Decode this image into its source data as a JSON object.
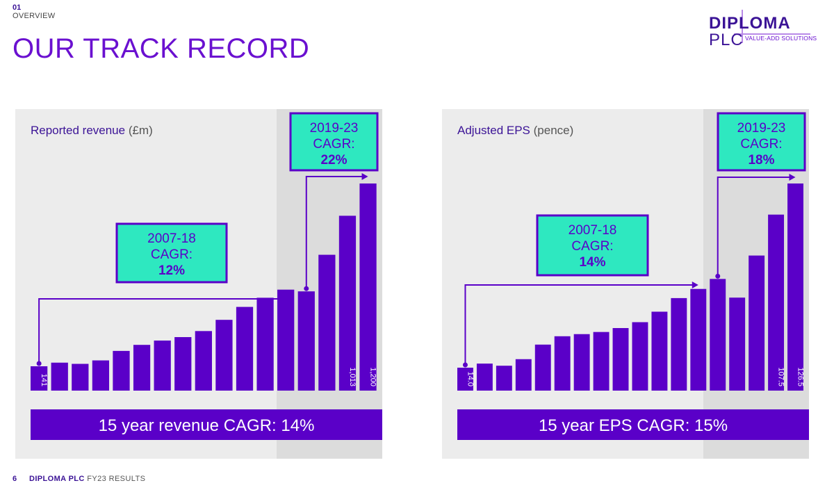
{
  "header": {
    "section_number": "01",
    "section_name": "OVERVIEW",
    "title": "OUR TRACK RECORD"
  },
  "logo": {
    "brand": "DIPLOMA",
    "suffix": "PLC",
    "tagline": "VALUE-ADD SOLUTIONS"
  },
  "footer": {
    "page_number": "6",
    "company": "DIPLOMA PLC",
    "report": "FY23 RESULTS"
  },
  "colors": {
    "bar": "#5a00c8",
    "panel_bg": "#ececec",
    "highlight_bg": "#dcdcdc",
    "callout_fill": "#2ee8c0",
    "callout_border": "#5a00c8",
    "accent": "#6a10d0"
  },
  "chart_data": [
    {
      "type": "bar",
      "title": "Reported revenue",
      "title_unit": "(£m)",
      "values": [
        141,
        162,
        155,
        175,
        230,
        265,
        290,
        310,
        345,
        410,
        485,
        538,
        585,
        575,
        787,
        1013,
        1200
      ],
      "value_labels": [
        "141",
        "",
        "",
        "",
        "",
        "",
        "",
        "",
        "",
        "",
        "",
        "",
        "",
        "",
        "",
        "1,013",
        "1,200"
      ],
      "ylim": [
        0,
        1200
      ],
      "callouts": [
        {
          "period": "2007-18",
          "label": "CAGR:",
          "value": "12%"
        },
        {
          "period": "2019-23",
          "label": "CAGR:",
          "value": "22%"
        }
      ],
      "summary": "15 year revenue CAGR: 14%"
    },
    {
      "type": "bar",
      "title": "Adjusted EPS",
      "title_unit": "(pence)",
      "values": [
        14.0,
        16.5,
        15.2,
        19.2,
        28.1,
        33.2,
        34.5,
        35.8,
        38.2,
        41.8,
        48.2,
        56.5,
        62.1,
        68.2,
        56.8,
        82.5,
        107.5,
        126.5
      ],
      "value_labels": [
        "14.0",
        "",
        "",
        "",
        "",
        "",
        "",
        "",
        "",
        "",
        "",
        "",
        "",
        "",
        "",
        "",
        "107.5",
        "126.5"
      ],
      "ylim": [
        0,
        126.5
      ],
      "callouts": [
        {
          "period": "2007-18",
          "label": "CAGR:",
          "value": "14%"
        },
        {
          "period": "2019-23",
          "label": "CAGR:",
          "value": "18%"
        }
      ],
      "summary": "15 year EPS CAGR: 15%"
    }
  ]
}
